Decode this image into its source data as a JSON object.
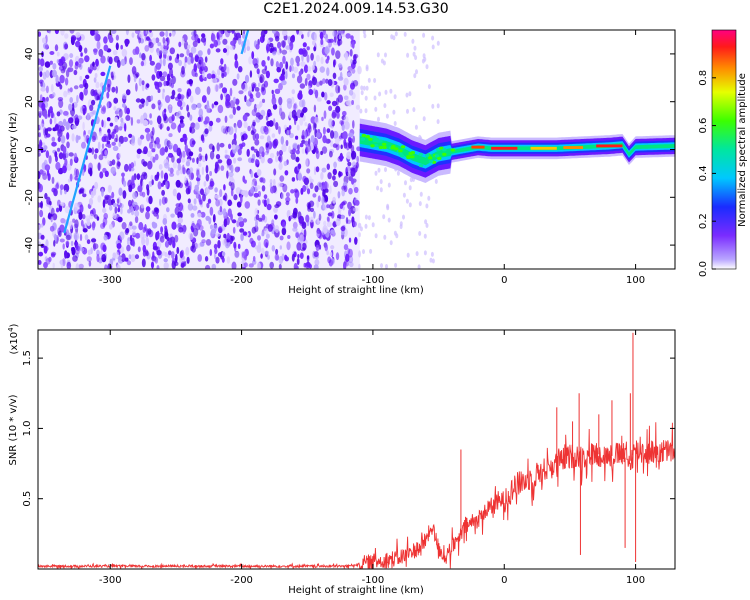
{
  "title": "C2E1.2024.009.14.53.G30",
  "colors": {
    "snr_line": "#ee3333",
    "spectro_noise_dark": "#5500ee",
    "spectro_noise_light": "#d6c6ff"
  },
  "chart_data": [
    {
      "type": "heatmap",
      "name": "spectrogram",
      "xlabel": "Height of straight line (km)",
      "ylabel": "Frequency (Hz)",
      "xlim": [
        -355,
        130
      ],
      "ylim": [
        -50,
        50
      ],
      "xticks": [
        -300,
        -200,
        -100,
        0,
        100
      ],
      "yticks": [
        -40,
        -20,
        0,
        20,
        40
      ],
      "grid": false,
      "colorbar": {
        "label": "Normalized spectral amplitude",
        "range": [
          0,
          1
        ],
        "ticks": [
          0.0,
          0.2,
          0.4,
          0.6,
          0.8
        ],
        "colormap": "rainbow (violet-blue-cyan-green-yellow-red-magenta)"
      },
      "noise_region_x": [
        -355,
        -110
      ],
      "signal_ridge": {
        "x": [
          -110,
          -100,
          -90,
          -80,
          -70,
          -60,
          -50,
          -40,
          -30,
          -20,
          -10,
          0,
          20,
          40,
          60,
          80,
          90,
          95,
          100,
          130
        ],
        "freq": [
          4,
          3,
          2,
          0,
          -3,
          -5,
          -2,
          -1,
          0,
          1,
          0.5,
          0.5,
          0.5,
          0.5,
          1,
          1.5,
          2,
          -2,
          1,
          1.5
        ]
      },
      "features": [
        {
          "x": [
            -335,
            -300
          ],
          "freq": [
            -35,
            35
          ],
          "kind": "diagonal streak"
        },
        {
          "x": [
            -200,
            -195
          ],
          "freq": [
            40,
            50
          ],
          "kind": "short streak"
        }
      ]
    },
    {
      "type": "line",
      "name": "snr",
      "xlabel": "Height of straight line (km)",
      "ylabel": "SNR (10 * v/v)",
      "y_multiplier": "(x10",
      "y_multiplier_exp": "4",
      "y_multiplier_close": ")",
      "xlim": [
        -355,
        130
      ],
      "ylim": [
        0,
        1.7
      ],
      "xticks": [
        -300,
        -200,
        -100,
        0,
        100
      ],
      "yticks": [
        0.5,
        1.0,
        1.5
      ],
      "grid": false,
      "envelope": {
        "x": [
          -355,
          -120,
          -100,
          -80,
          -65,
          -60,
          -55,
          -50,
          -45,
          -40,
          -35,
          -30,
          -20,
          -10,
          0,
          10,
          20,
          30,
          40,
          50,
          60,
          70,
          80,
          90,
          95,
          100,
          105,
          130
        ],
        "y": [
          0.02,
          0.02,
          0.05,
          0.08,
          0.15,
          0.2,
          0.3,
          0.15,
          0.08,
          0.15,
          0.2,
          0.3,
          0.35,
          0.45,
          0.5,
          0.6,
          0.65,
          0.7,
          0.75,
          0.8,
          0.8,
          0.82,
          0.8,
          0.82,
          0.75,
          0.85,
          0.83,
          0.84
        ]
      },
      "spikes": [
        {
          "x": -33,
          "y": 0.85
        },
        {
          "x": 40,
          "y": 1.15
        },
        {
          "x": 52,
          "y": 1.05
        },
        {
          "x": 57,
          "y": 1.25
        },
        {
          "x": 58,
          "y": 0.1
        },
        {
          "x": 72,
          "y": 1.1
        },
        {
          "x": 82,
          "y": 1.2
        },
        {
          "x": 92,
          "y": 0.15
        },
        {
          "x": 96,
          "y": 1.25
        },
        {
          "x": 98,
          "y": 1.68
        },
        {
          "x": 100,
          "y": 0.05
        }
      ]
    }
  ]
}
